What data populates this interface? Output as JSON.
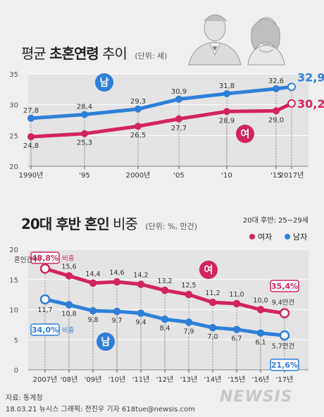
{
  "chart_data": [
    {
      "type": "line",
      "title_plain": "평균",
      "title_bold": "초혼연령",
      "title_end": "추이",
      "unit": "(단위: 세)",
      "x": [
        "1990년",
        "'95",
        "2000년",
        "'05",
        "'10",
        "'15",
        "2017년"
      ],
      "x_pos": [
        1990,
        1995,
        2000,
        2005,
        2010,
        2015,
        2017
      ],
      "ylim": [
        20,
        35
      ],
      "yticks": [
        "20",
        "25",
        "30",
        "35"
      ],
      "series": [
        {
          "name": "남",
          "color": "#2f7fd8",
          "values": [
            27.8,
            28.4,
            29.3,
            30.9,
            31.8,
            32.6,
            32.9
          ],
          "labels": [
            "27,8",
            "28,4",
            "29,3",
            "30,9",
            "31,8",
            "32,6",
            "32,9"
          ],
          "last_unit": "세"
        },
        {
          "name": "여",
          "color": "#d2245f",
          "values": [
            24.8,
            25.3,
            26.5,
            27.7,
            28.9,
            29.0,
            30.2
          ],
          "labels": [
            "24,8",
            "25,3",
            "26,5",
            "27,7",
            "28,9",
            "29,0",
            "30,2"
          ],
          "last_unit": "세"
        }
      ]
    },
    {
      "type": "line",
      "title_bold": "20대 후반 혼인",
      "title_end": "비중",
      "unit": "(단위: %, 만건)",
      "subtitle": "20대 후반: 25~29세",
      "legend": [
        "여자",
        "남자"
      ],
      "x": [
        "2007년",
        "'08년",
        "'09년",
        "'10년",
        "'11년",
        "'12년",
        "'13년",
        "'14년",
        "'15년",
        "'16년",
        "'17년"
      ],
      "ylim": [
        0,
        20
      ],
      "yticks": [
        "0",
        "5",
        "10",
        "15",
        "20"
      ],
      "count_label": "혼인건수:",
      "series": [
        {
          "name": "여",
          "legend": "여자",
          "color": "#d2245f",
          "values": [
            16.8,
            15.6,
            14.4,
            14.6,
            14.2,
            13.2,
            12.5,
            11.2,
            11.0,
            10.0,
            9.4
          ],
          "labels": [
            "16,8",
            "15,6",
            "14,4",
            "14,6",
            "14,2",
            "13,2",
            "12,5",
            "11,2",
            "11,0",
            "10,0",
            "9,4만건"
          ],
          "start_share": "48,8%",
          "end_share": "35,4%"
        },
        {
          "name": "남",
          "legend": "남자",
          "color": "#2f7fd8",
          "values": [
            11.7,
            10.8,
            9.8,
            9.7,
            9.4,
            8.4,
            7.9,
            7.0,
            6.7,
            6.1,
            5.7
          ],
          "labels": [
            "11,7",
            "10,8",
            "9,8",
            "9,7",
            "9,4",
            "8,4",
            "7,9",
            "7,0",
            "6,7",
            "6,1",
            "5,7만건"
          ],
          "start_share": "34,0%",
          "end_share": "21,6%"
        }
      ],
      "share_word": "비중"
    }
  ],
  "source": {
    "line1": "자료: 통계청",
    "line2": "18.03.21 뉴시스 그래픽: 전진우 기자 618tue@newsis.com"
  },
  "watermark": "NEWSIS"
}
